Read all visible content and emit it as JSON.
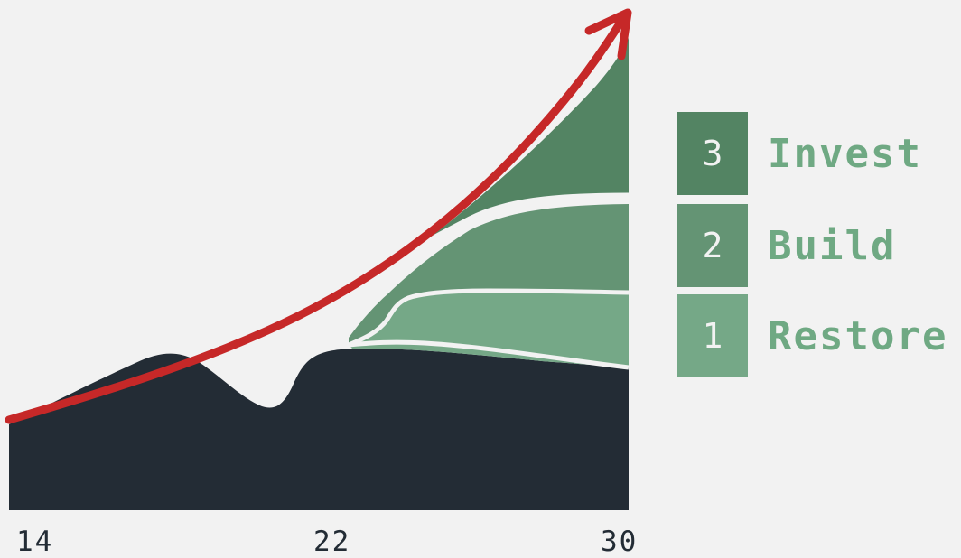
{
  "x_axis": {
    "ticks": [
      "14",
      "22",
      "30"
    ]
  },
  "legend": [
    {
      "number": "3",
      "label": "Invest",
      "color": "#538463",
      "text_color": "#6fa983"
    },
    {
      "number": "2",
      "label": "Build",
      "color": "#649474",
      "text_color": "#6fa983"
    },
    {
      "number": "1",
      "label": "Restore",
      "color": "#75a887",
      "text_color": "#6fa983"
    }
  ],
  "colors": {
    "background": "#f2f2f2",
    "base_area": "#232c35",
    "trend_arrow": "#c62828",
    "separator": "#f2f2f2"
  }
}
